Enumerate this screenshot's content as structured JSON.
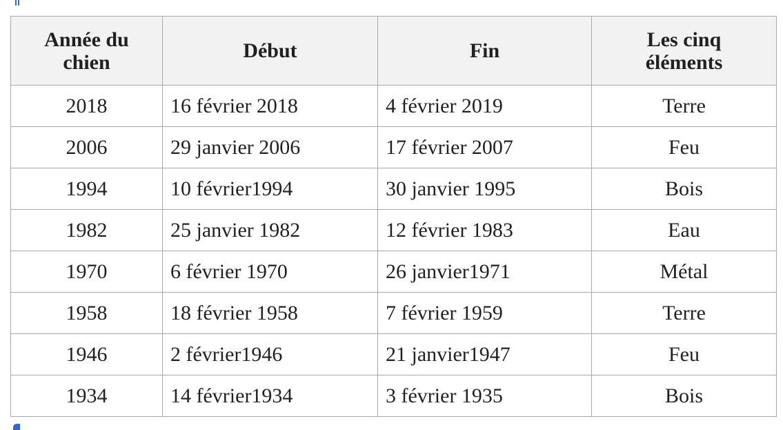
{
  "table": {
    "header": [
      "Année du chien",
      "Début",
      "Fin",
      "Les cinq éléments"
    ],
    "rows": [
      [
        "2018",
        "16 février 2018",
        "4 février 2019",
        "Terre"
      ],
      [
        "2006",
        "29 janvier 2006",
        "17 février 2007",
        "Feu"
      ],
      [
        "1994",
        "10 février1994",
        "30 janvier 1995",
        "Bois"
      ],
      [
        "1982",
        "25 janvier 1982",
        "12 février 1983",
        "Eau"
      ],
      [
        "1970",
        "6 février 1970",
        "26 janvier1971",
        "Métal"
      ],
      [
        "1958",
        "18 février 1958",
        "7 février 1959",
        "Terre"
      ],
      [
        "1946",
        "2 février1946",
        "21 janvier1947",
        "Feu"
      ],
      [
        "1934",
        "14 février1934",
        "3 février 1935",
        "Bois"
      ]
    ]
  }
}
